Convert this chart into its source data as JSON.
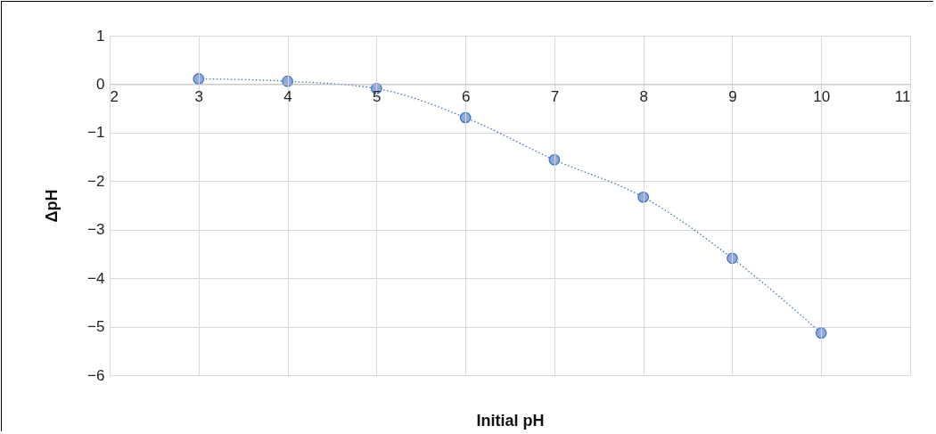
{
  "chart_data": {
    "type": "line",
    "xlabel": "Initial pH",
    "ylabel": "ΔpH",
    "x": [
      3,
      4,
      5,
      6,
      7,
      8,
      9,
      10
    ],
    "series": [
      {
        "color": "#4472c4",
        "values": [
          0.11,
          0.06,
          -0.09,
          -0.69,
          -1.56,
          -2.33,
          -3.59,
          -5.13
        ]
      }
    ],
    "xlim": [
      2,
      11
    ],
    "xticks": [
      2,
      3,
      4,
      5,
      6,
      7,
      8,
      9,
      10,
      11
    ],
    "ylim": [
      -6,
      1
    ],
    "yticks": [
      -6,
      -5,
      -4,
      -3,
      -2,
      -1,
      0,
      1
    ],
    "grid": true,
    "marker": "circle",
    "line_style": "dotted"
  }
}
